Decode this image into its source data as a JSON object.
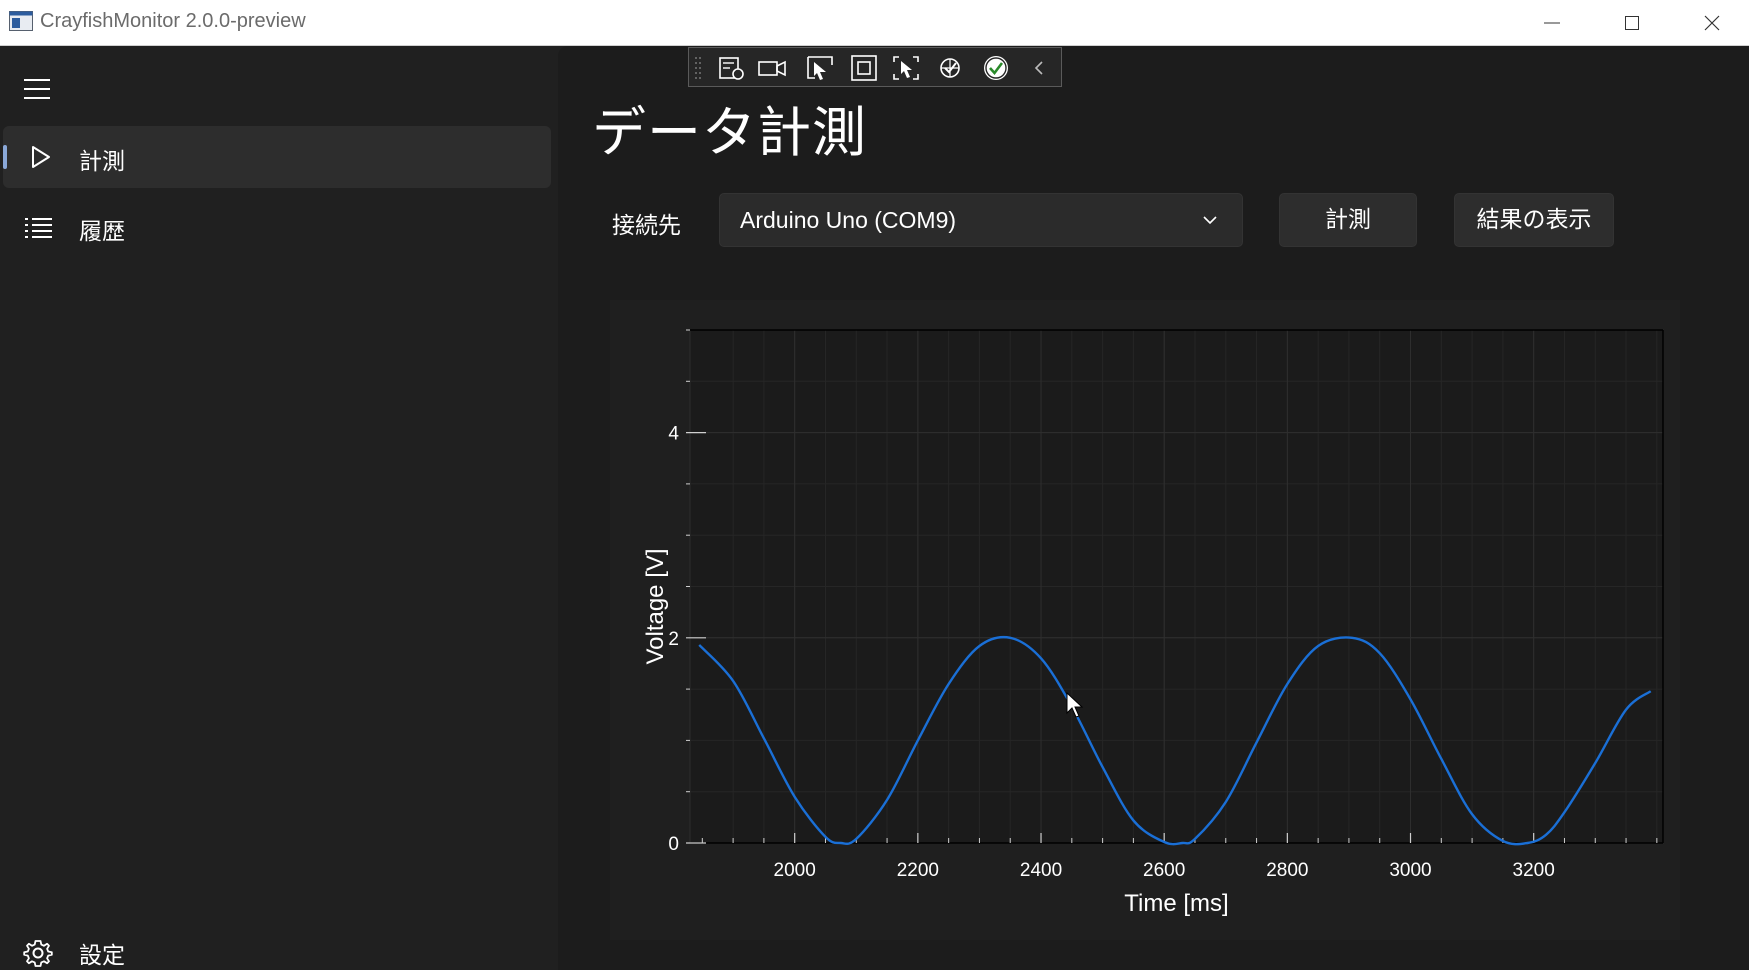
{
  "window": {
    "title": "CrayfishMonitor 2.0.0-preview",
    "controls": [
      "minimize",
      "maximize",
      "close"
    ]
  },
  "sidebar": {
    "menu_icon": "hamburger-icon",
    "items": [
      {
        "label": "計測",
        "icon": "play-icon",
        "selected": true
      },
      {
        "label": "履歴",
        "icon": "list-icon",
        "selected": false
      }
    ],
    "footer": {
      "label": "設定",
      "icon": "gear-icon"
    }
  },
  "devtools": {
    "icons": [
      "grip-icon",
      "live-visual-tree-icon",
      "record-icon",
      "select-element-icon",
      "display-layout-adorners-icon",
      "track-focus-icon",
      "hot-reload-icon",
      "status-ok-icon",
      "collapse-chevron-icon"
    ]
  },
  "page": {
    "title": "データ計測",
    "connection_label": "接続先",
    "connection_value": "Arduino Uno (COM9)",
    "measure_button": "計測",
    "show_results_button": "結果の表示"
  },
  "colors": {
    "accent": "#8aa8d8",
    "series": "#1a6fd6",
    "background": "#202020",
    "pane": "#1c1c1c"
  },
  "chart_data": {
    "type": "line",
    "xlabel": "Time [ms]",
    "ylabel": "Voltage [V]",
    "xlim": [
      1830,
      3410
    ],
    "ylim": [
      0,
      5
    ],
    "x_ticks": [
      2000,
      2200,
      2400,
      2600,
      2800,
      3000,
      3200
    ],
    "y_ticks": [
      0,
      2,
      4
    ],
    "grid": true,
    "series": [
      {
        "x": [
          1845,
          1900,
          1950,
          2000,
          2050,
          2075,
          2100,
          2150,
          2200,
          2250,
          2300,
          2350,
          2400,
          2450,
          2500,
          2550,
          2600,
          2630,
          2650,
          2700,
          2750,
          2800,
          2850,
          2905,
          2950,
          3000,
          3050,
          3100,
          3150,
          3190,
          3220,
          3250,
          3300,
          3350,
          3390
        ],
        "y": [
          1.93,
          1.58,
          1.02,
          0.45,
          0.06,
          0.0,
          0.04,
          0.42,
          1.0,
          1.55,
          1.92,
          2.0,
          1.8,
          1.33,
          0.74,
          0.22,
          0.01,
          0.0,
          0.04,
          0.4,
          0.98,
          1.55,
          1.92,
          2.0,
          1.85,
          1.4,
          0.82,
          0.28,
          0.02,
          0.0,
          0.08,
          0.3,
          0.78,
          1.3,
          1.48
        ]
      }
    ]
  }
}
